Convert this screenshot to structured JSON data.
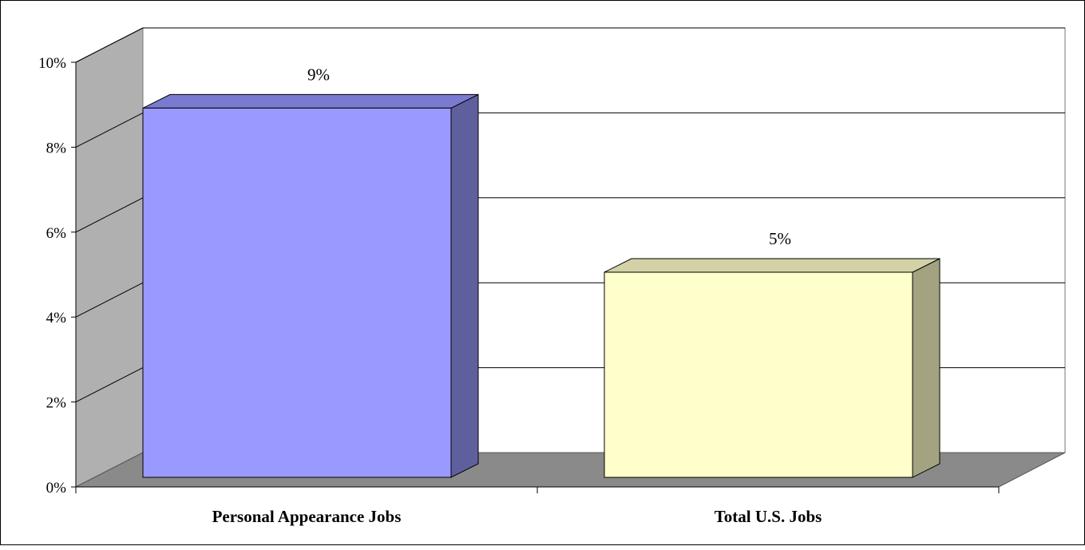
{
  "chart_data": {
    "type": "bar",
    "style": "3d-column",
    "categories": [
      "Personal Appearance Jobs",
      "Total U.S. Jobs"
    ],
    "values": [
      9,
      5
    ],
    "data_labels": [
      "9%",
      "5%"
    ],
    "ylim": [
      0,
      10
    ],
    "y_ticks": [
      "0%",
      "2%",
      "4%",
      "6%",
      "8%",
      "10%"
    ],
    "title": "",
    "xlabel": "",
    "ylabel": "",
    "grid": true,
    "legend": "none",
    "colors": {
      "bars": [
        {
          "front": "#9999ff",
          "side": "#5f5f9e",
          "top": "#7a7ad0"
        },
        {
          "front": "#ffffcc",
          "side": "#a3a382",
          "top": "#d2d2a6"
        }
      ],
      "wall_side": "#b0b0b0",
      "floor": "#8a8a8a",
      "back_wall": "#ffffff",
      "gridline": "#000000"
    }
  }
}
